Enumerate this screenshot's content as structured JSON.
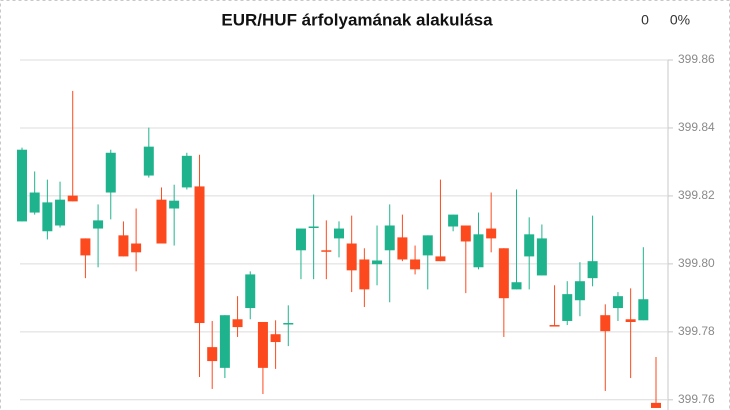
{
  "chart_data": {
    "type": "candlestick",
    "title": "EUR/HUF árfolyamának alakulása",
    "stats": [
      "0",
      "0%"
    ],
    "up_color": "#1fb38d",
    "down_color": "#fc4a1e",
    "grid": true,
    "axis_side": "right",
    "ylim": [
      399.757,
      399.86
    ],
    "yticks": [
      399.76,
      399.78,
      {
        "value": 399.8,
        "label": "399.80"
      },
      399.82,
      399.84,
      399.86
    ],
    "series": [
      {
        "open": [
          399.8125,
          399.8151,
          399.8096,
          399.8113,
          399.8201,
          399.8075,
          399.8104,
          399.821,
          399.8084,
          399.806,
          399.826,
          399.8189,
          399.8163,
          399.8225,
          399.8228,
          399.7755,
          399.7694,
          399.7837,
          399.787,
          399.7829,
          399.7793,
          399.7823,
          399.804,
          399.8107,
          399.804,
          399.8075,
          399.806,
          399.8013,
          399.7999,
          399.804,
          399.8078,
          399.8013,
          399.8025,
          399.8022,
          399.811,
          399.8113,
          399.799,
          399.8104,
          399.8046,
          399.7925,
          399.8022,
          399.7966,
          399.782,
          399.7832,
          399.7893,
          399.7958,
          399.7849,
          399.787,
          399.7837,
          399.7834,
          399.7591
        ],
        "high": [
          399.8342,
          399.8272,
          399.8248,
          399.8242,
          399.8509,
          399.8075,
          399.8175,
          399.8336,
          399.8125,
          399.8163,
          399.8401,
          399.8225,
          399.8233,
          399.8327,
          399.8321,
          399.7832,
          399.7849,
          399.7905,
          399.7978,
          399.7829,
          399.7834,
          399.7878,
          399.8104,
          399.8204,
          399.8128,
          399.8125,
          399.8142,
          399.8046,
          399.8113,
          399.8175,
          399.8145,
          399.8054,
          399.8084,
          399.8248,
          399.8145,
          399.8113,
          399.8151,
          399.821,
          399.8046,
          399.8219,
          399.8137,
          399.8116,
          399.7937,
          399.7949,
          399.8005,
          399.8142,
          399.7881,
          399.7917,
          399.7928,
          399.8049,
          399.7726
        ],
        "low": [
          399.8125,
          399.8145,
          399.8072,
          399.8107,
          399.8184,
          399.7958,
          399.799,
          399.8131,
          399.8022,
          399.7978,
          399.8254,
          399.806,
          399.8054,
          399.8219,
          399.7667,
          399.7632,
          399.7664,
          399.7785,
          399.7837,
          399.7617,
          399.7691,
          399.7758,
          399.7955,
          399.7955,
          399.7955,
          399.8019,
          399.7917,
          399.7873,
          399.7937,
          399.7887,
          399.8008,
          399.7969,
          399.7925,
          399.8008,
          399.8096,
          399.7914,
          399.7984,
          399.8034,
          399.7785,
          399.7925,
          399.7925,
          399.7966,
          399.7817,
          399.782,
          399.7846,
          399.7934,
          399.7626,
          399.7832,
          399.7664,
          399.7834,
          399.7576
        ],
        "close": [
          399.8336,
          399.821,
          399.8181,
          399.8189,
          399.8184,
          399.8025,
          399.8128,
          399.8327,
          399.8022,
          399.8034,
          399.8345,
          399.806,
          399.8186,
          399.8318,
          399.7826,
          399.7714,
          399.7849,
          399.7814,
          399.7969,
          399.7694,
          399.777,
          399.7826,
          399.8104,
          399.811,
          399.8037,
          399.8104,
          399.7981,
          399.7925,
          399.801,
          399.8113,
          399.8013,
          399.7984,
          399.8084,
          399.8008,
          399.8145,
          399.8066,
          399.8087,
          399.8075,
          399.7899,
          399.7946,
          399.8087,
          399.8075,
          399.7817,
          399.7911,
          399.7949,
          399.8008,
          399.7802,
          399.7905,
          399.7829,
          399.7896,
          399.7576
        ]
      }
    ]
  }
}
